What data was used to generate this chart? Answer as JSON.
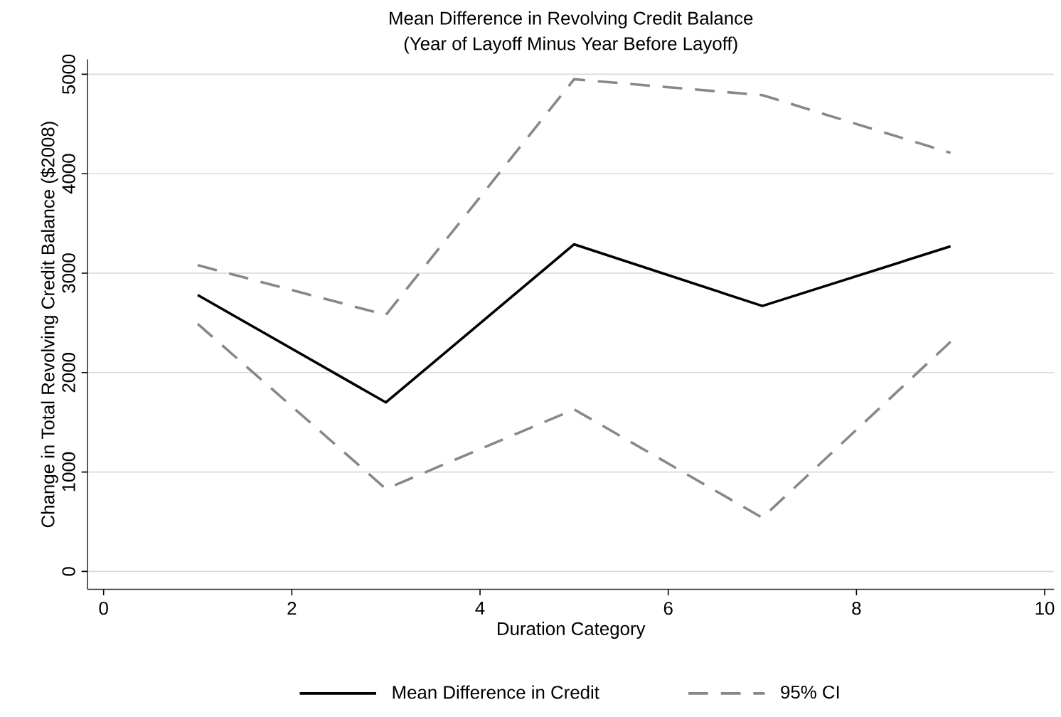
{
  "chart_data": {
    "type": "line",
    "title": "Mean Difference in Revolving Credit Balance",
    "subtitle": "(Year of Layoff Minus Year Before Layoff)",
    "xlabel": "Duration Category",
    "ylabel": "Change in Total Revolving Credit Balance ($2008)",
    "x": [
      1,
      3,
      5,
      7,
      9
    ],
    "series": [
      {
        "name": "Mean Difference in Credit",
        "color": "#000000",
        "line_style": "solid",
        "values": [
          2780,
          1700,
          3290,
          2670,
          3270
        ]
      },
      {
        "name": "95% CI",
        "color": "#888888",
        "line_style": "dashed",
        "values": [
          3080,
          2580,
          4950,
          4790,
          4210
        ]
      },
      {
        "color": "#888888",
        "line_style": "dashed",
        "values": [
          2490,
          830,
          1630,
          540,
          2310
        ]
      }
    ],
    "xlim": [
      -0.17,
      10.1
    ],
    "ylim": [
      -180,
      5150
    ],
    "xticks": [
      0,
      2,
      4,
      6,
      8,
      10
    ],
    "yticks": [
      0,
      1000,
      2000,
      3000,
      4000,
      5000
    ],
    "grid": "y",
    "legend": "bottom",
    "marker": "none"
  }
}
